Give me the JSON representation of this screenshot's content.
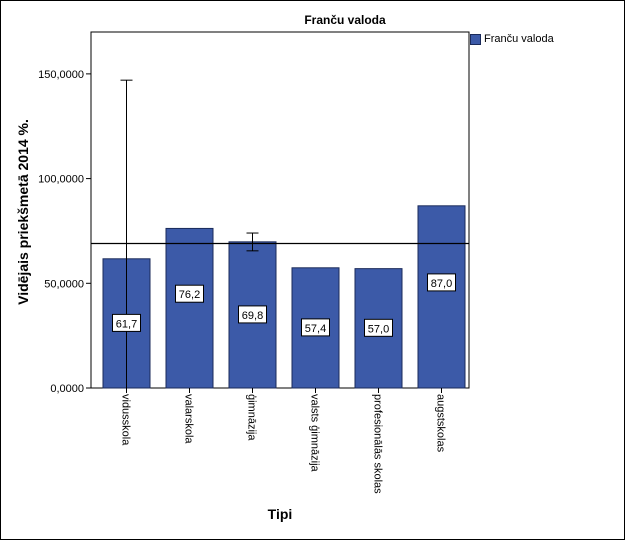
{
  "chart_data": {
    "type": "bar",
    "title": "Franču valoda",
    "xlabel": "Tipi",
    "ylabel": "Vidējais priekšmetā 2014 %.",
    "categories": [
      "vidusskola",
      "valarskola",
      "ģimnāzija",
      "valsts ģimnāzija",
      "profesionālās skolas",
      "augstskolas"
    ],
    "series": [
      {
        "name": "Franču valoda",
        "values": [
          61.7,
          76.2,
          69.8,
          57.4,
          57.0,
          87.0
        ],
        "data_labels": [
          "61,7",
          "76,2",
          "69,8",
          "57,4",
          "57,0",
          "87,0"
        ],
        "error_bars": [
          [
            0.0,
            147.0
          ],
          null,
          [
            65.5,
            74.0
          ],
          null,
          null,
          null
        ]
      }
    ],
    "reference_line": 69.0,
    "ylim": [
      0,
      170
    ],
    "yticks": [
      {
        "value": 0,
        "label": "0,0000"
      },
      {
        "value": 50,
        "label": "50,0000"
      },
      {
        "value": 100,
        "label": "100,0000"
      },
      {
        "value": 150,
        "label": "150,0000"
      }
    ],
    "legend_position": "top-right",
    "colors": {
      "bar": "#3c5aa8",
      "bar_stroke": "#1a2a5a",
      "axis": "#000000"
    }
  }
}
